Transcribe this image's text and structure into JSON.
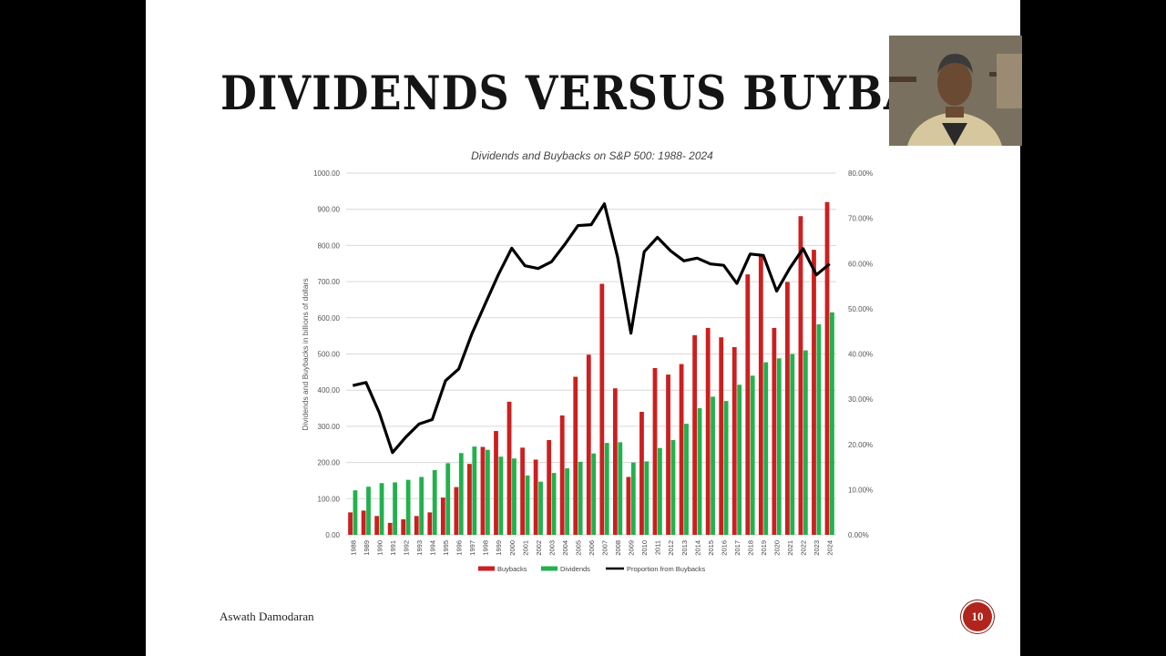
{
  "slide": {
    "title": "DIVIDENDS VERSUS BUYBACKS",
    "footer_author": "Aswath Damodaran",
    "page_number": "10"
  },
  "chart_data": {
    "type": "bar",
    "title": "Dividends and Buybacks on S&P 500: 1988- 2024",
    "ylabel": "Dividends and Buybacks in billions of dollars",
    "ylim": [
      0,
      1000
    ],
    "y2lim": [
      0,
      80
    ],
    "y_ticks": [
      "0.00",
      "100.00",
      "200.00",
      "300.00",
      "400.00",
      "500.00",
      "600.00",
      "700.00",
      "800.00",
      "900.00",
      "1000.00"
    ],
    "y2_ticks": [
      "0.00%",
      "10.00%",
      "20.00%",
      "30.00%",
      "40.00%",
      "50.00%",
      "60.00%",
      "70.00%",
      "80.00%"
    ],
    "legend_position": "bottom",
    "grid": true,
    "categories": [
      "1988",
      "1989",
      "1990",
      "1991",
      "1992",
      "1993",
      "1994",
      "1995",
      "1996",
      "1997",
      "1998",
      "1999",
      "2000",
      "2001",
      "2002",
      "2003",
      "2004",
      "2005",
      "2006",
      "2007",
      "2008",
      "2009",
      "2010",
      "2011",
      "2012",
      "2013",
      "2014",
      "2015",
      "2016",
      "2017",
      "2018",
      "2019",
      "2020",
      "2021",
      "2022",
      "2023",
      "2024"
    ],
    "series": [
      {
        "name": "Buybacks",
        "type": "bar",
        "color": "#cc1f1f",
        "values": [
          62,
          67,
          52,
          33,
          43,
          52,
          62,
          103,
          132,
          196,
          243,
          287,
          368,
          241,
          208,
          262,
          330,
          437,
          498,
          694,
          405,
          160,
          340,
          461,
          443,
          472,
          552,
          572,
          546,
          519,
          720,
          771,
          572,
          699,
          881,
          788,
          920
        ]
      },
      {
        "name": "Dividends",
        "type": "bar",
        "color": "#22b14c",
        "values": [
          123,
          133,
          143,
          145,
          152,
          160,
          179,
          198,
          226,
          244,
          235,
          216,
          211,
          164,
          147,
          171,
          184,
          202,
          225,
          254,
          256,
          200,
          203,
          240,
          262,
          307,
          350,
          382,
          370,
          415,
          440,
          477,
          488,
          500,
          510,
          582,
          615
        ]
      },
      {
        "name": "Proportion from Buybacks",
        "type": "line",
        "axis": "right",
        "color": "#000000",
        "values": [
          33.0,
          33.7,
          27.0,
          18.2,
          21.6,
          24.5,
          25.5,
          34.1,
          36.7,
          44.5,
          51.1,
          57.6,
          63.4,
          59.5,
          58.9,
          60.4,
          64.2,
          68.4,
          68.6,
          73.2,
          61.3,
          44.6,
          62.6,
          65.8,
          62.8,
          60.6,
          61.2,
          59.9,
          59.6,
          55.6,
          62.1,
          61.8,
          53.9,
          59.0,
          63.3,
          57.5,
          59.9
        ]
      }
    ]
  }
}
